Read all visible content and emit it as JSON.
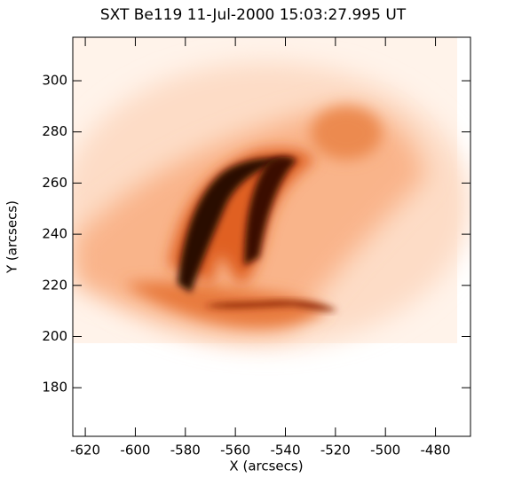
{
  "chart_data": {
    "type": "image",
    "title": "SXT Be119 11-Jul-2000 15:03:27.995 UT",
    "x_label": "X (arcsecs)",
    "y_label": "Y (arcsecs)",
    "xlim": [
      -625,
      -466
    ],
    "xticks": [
      -620,
      -600,
      -580,
      -560,
      -540,
      -520,
      -500,
      -480
    ],
    "ylim": [
      161,
      317
    ],
    "yticks": [
      180,
      200,
      220,
      240,
      260,
      280,
      300
    ],
    "color": "#000000"
  }
}
